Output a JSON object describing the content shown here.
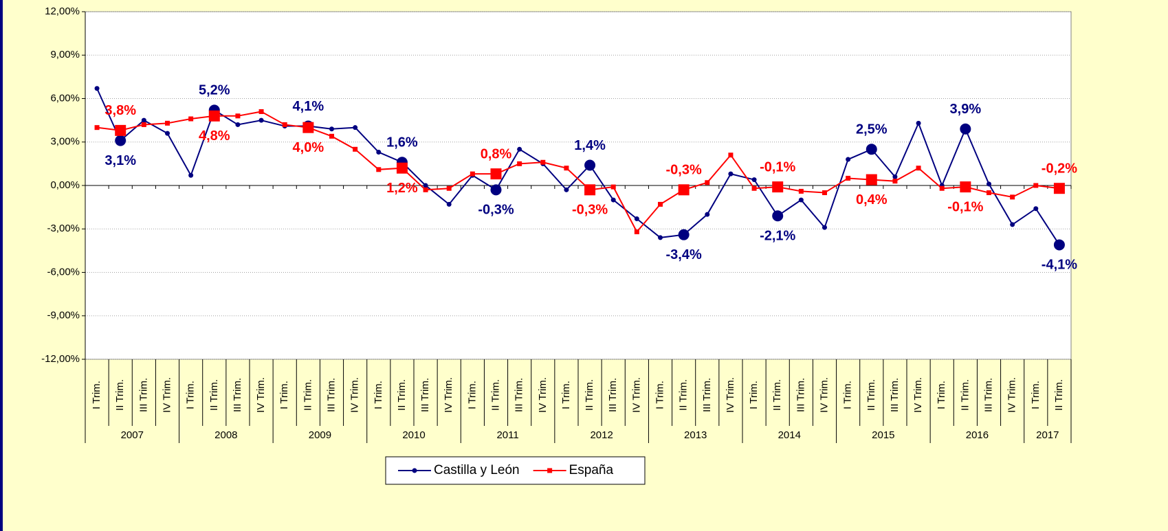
{
  "chart_data": {
    "type": "line",
    "categories": [
      "I Trim.",
      "II Trim.",
      "III Trim.",
      "IV Trim.",
      "I Trim.",
      "II Trim.",
      "III Trim.",
      "IV Trim.",
      "I Trim.",
      "II Trim.",
      "III Trim.",
      "IV Trim.",
      "I Trim.",
      "II Trim.",
      "III Trim.",
      "IV Trim.",
      "I Trim.",
      "II Trim.",
      "III Trim.",
      "IV Trim.",
      "I Trim.",
      "II Trim.",
      "III Trim.",
      "IV Trim.",
      "I Trim.",
      "II Trim.",
      "III Trim.",
      "IV Trim.",
      "I Trim.",
      "II Trim.",
      "III Trim.",
      "IV Trim.",
      "I Trim.",
      "II Trim.",
      "III Trim.",
      "IV Trim.",
      "I Trim.",
      "II Trim.",
      "III Trim.",
      "IV Trim.",
      "I Trim.",
      "II Trim."
    ],
    "years": [
      "2007",
      "2008",
      "2009",
      "2010",
      "2011",
      "2012",
      "2013",
      "2014",
      "2015",
      "2016",
      "2017"
    ],
    "series": [
      {
        "name": "Castilla y León",
        "color": "#000080",
        "values": [
          6.7,
          3.1,
          4.5,
          3.6,
          0.7,
          5.2,
          4.2,
          4.5,
          4.1,
          4.1,
          3.9,
          4.0,
          2.3,
          1.6,
          0.0,
          -1.3,
          0.7,
          -0.3,
          2.5,
          1.5,
          -0.3,
          1.4,
          -1.0,
          -2.3,
          -3.6,
          -3.4,
          -2.0,
          0.8,
          0.4,
          -2.1,
          -1.0,
          -2.9,
          1.8,
          2.5,
          0.6,
          4.3,
          0.0,
          3.9,
          0.1,
          -2.7,
          -1.6,
          -4.1
        ],
        "value_labels": [
          null,
          "3,1%",
          null,
          null,
          null,
          "5,2%",
          null,
          null,
          null,
          "4,1%",
          null,
          null,
          null,
          "1,6%",
          null,
          null,
          null,
          "-0,3%",
          null,
          null,
          null,
          "1,4%",
          null,
          null,
          null,
          "-3,4%",
          null,
          null,
          null,
          "-2,1%",
          null,
          null,
          null,
          "2,5%",
          null,
          null,
          null,
          "3,9%",
          null,
          null,
          null,
          "-4,1%"
        ]
      },
      {
        "name": "España",
        "color": "#ff0000",
        "values": [
          4.0,
          3.8,
          4.2,
          4.3,
          4.6,
          4.8,
          4.8,
          5.1,
          4.2,
          4.0,
          3.4,
          2.5,
          1.1,
          1.2,
          -0.3,
          -0.2,
          0.8,
          0.8,
          1.5,
          1.6,
          1.2,
          -0.3,
          -0.1,
          -3.2,
          -1.3,
          -0.3,
          0.2,
          2.1,
          -0.2,
          -0.1,
          -0.4,
          -0.5,
          0.5,
          0.4,
          0.3,
          1.2,
          -0.2,
          -0.1,
          -0.5,
          -0.8,
          0.0,
          -0.2
        ],
        "value_labels": [
          null,
          "3,8%",
          null,
          null,
          null,
          "4,8%",
          null,
          null,
          null,
          "4,0%",
          null,
          null,
          null,
          "1,2%",
          null,
          null,
          null,
          "0,8%",
          null,
          null,
          null,
          "-0,3%",
          null,
          null,
          null,
          "-0,3%",
          null,
          null,
          null,
          "-0,1%",
          null,
          null,
          null,
          "0,4%",
          null,
          null,
          null,
          "-0,1%",
          null,
          null,
          null,
          "-0,2%"
        ]
      }
    ],
    "ylim": [
      -12,
      12
    ],
    "yticks": [
      {
        "value": -12,
        "label": "-12,00%"
      },
      {
        "value": -9,
        "label": "-9,00%"
      },
      {
        "value": -6,
        "label": "-6,00%"
      },
      {
        "value": -3,
        "label": "-3,00%"
      },
      {
        "value": 0,
        "label": "0,00%"
      },
      {
        "value": 3,
        "label": "3,00%"
      },
      {
        "value": 6,
        "label": "6,00%"
      },
      {
        "value": 9,
        "label": "9,00%"
      },
      {
        "value": 12,
        "label": "12,00%"
      }
    ],
    "grid": true,
    "legend": "bottom"
  }
}
